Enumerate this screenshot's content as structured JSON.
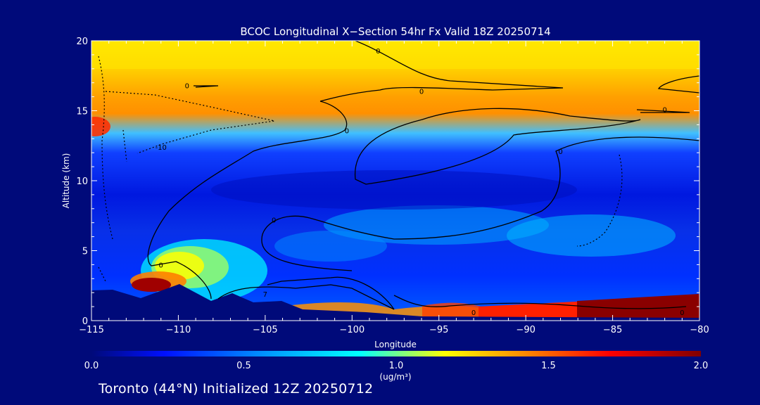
{
  "chart_data": {
    "type": "heatmap",
    "title": "BCOC Longitudinal X−Section 54hr  Fx Valid 18Z 20250714",
    "xlabel": "Longitude",
    "ylabel": "Altitude (km)",
    "xlim": [
      -115,
      -80
    ],
    "ylim": [
      0,
      20
    ],
    "x_ticks": [
      -115,
      -110,
      -105,
      -100,
      -95,
      -90,
      -85,
      -80
    ],
    "x_tick_labels": [
      "−115",
      "−110",
      "−105",
      "−100",
      "−95",
      "−90",
      "−85",
      "−80"
    ],
    "y_ticks": [
      0,
      5,
      10,
      15,
      20
    ],
    "y_tick_labels": [
      "0",
      "5",
      "10",
      "15",
      "20"
    ],
    "grid": false,
    "colorbar": {
      "range": [
        0.0,
        2.0
      ],
      "ticks": [
        0.0,
        0.5,
        1.0,
        1.5,
        2.0
      ],
      "tick_labels": [
        "0.0",
        "0.5",
        "1.0",
        "1.5",
        "2.0"
      ],
      "unit_label": "(ug/m³)",
      "colors": [
        "#000a7a",
        "#0010ff",
        "#00a0ff",
        "#00ffff",
        "#ffff00",
        "#ff8000",
        "#ff0000",
        "#800000"
      ]
    },
    "contour_labels": [
      {
        "text": "0",
        "lon": -98.5,
        "alt": 19.3
      },
      {
        "text": "0",
        "lon": -109.5,
        "alt": 16.8
      },
      {
        "text": "0",
        "lon": -100.3,
        "alt": 13.6
      },
      {
        "text": "-10",
        "lon": -111.0,
        "alt": 12.4
      },
      {
        "text": "0",
        "lon": -96.0,
        "alt": 16.4
      },
      {
        "text": "0",
        "lon": -82.0,
        "alt": 15.1
      },
      {
        "text": "0",
        "lon": -88.0,
        "alt": 12.1
      },
      {
        "text": "0",
        "lon": -104.5,
        "alt": 7.2
      },
      {
        "text": "0",
        "lon": -111.0,
        "alt": 4.0
      },
      {
        "text": "7",
        "lon": -105.0,
        "alt": 1.9
      },
      {
        "text": "0",
        "lon": -93.0,
        "alt": 0.6
      },
      {
        "text": "0",
        "lon": -81.0,
        "alt": 0.6
      }
    ],
    "field_description_bands": [
      {
        "alt_range": [
          13,
          16
        ],
        "value_range": [
          1.0,
          1.6
        ]
      },
      {
        "alt_range": [
          0,
          2
        ],
        "lon_range": [
          -92,
          -80
        ],
        "value_range": [
          1.4,
          2.0
        ]
      },
      {
        "alt_range": [
          2,
          5
        ],
        "lon_range": [
          -112,
          -104
        ],
        "value_range": [
          0.9,
          2.0
        ]
      }
    ]
  },
  "footer": "Toronto (44°N) Initialized 12Z 20250712",
  "colors": {
    "background": "#000a7a",
    "text": "#ffffff",
    "terrain": "#000a7a",
    "contour": "#000000"
  }
}
